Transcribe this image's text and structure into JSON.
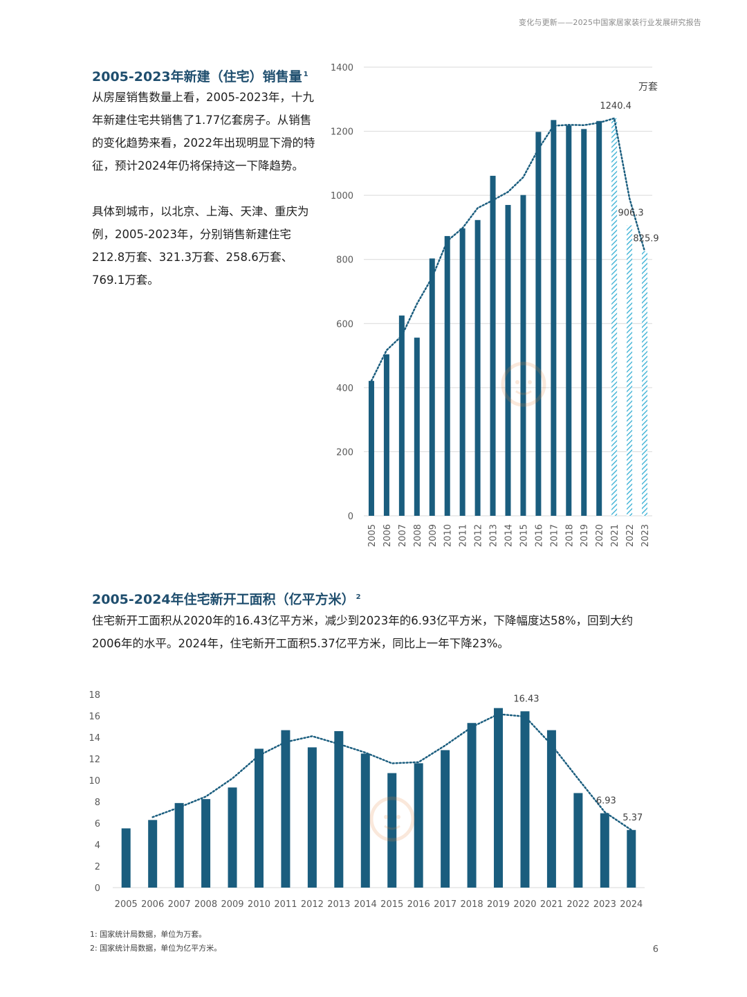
{
  "header": {
    "title": "变化与更新——2025中国家居家装行业发展研究报告"
  },
  "section1": {
    "title": "2005-2023年新建（住宅）销售量",
    "footnote_ref": "1",
    "paragraph1": "从房屋销售数量上看，2005-2023年，十九年新建住宅共销售了1.77亿套房子。从销售的变化趋势来看，2022年出现明显下滑的特征，预计2024年仍将保持这一下降趋势。",
    "paragraph2": "具体到城市，以北京、上海、天津、重庆为例，2005-2023年，分别销售新建住宅212.8万套、321.3万套、258.6万套、769.1万套。"
  },
  "section2": {
    "title": "2005-2024年住宅新开工面积（亿平方米）",
    "footnote_ref": "2",
    "paragraph": "住宅新开工面积从2020年的16.43亿平方米，减少到2023年的6.93亿平方米，下降幅度达58%，回到大约2006年的水平。2024年，住宅新开工面积5.37亿平方米，同比上一年下降23%。"
  },
  "chart_data": [
    {
      "type": "bar",
      "title": "",
      "unit": "万套",
      "categories": [
        "2005",
        "2006",
        "2007",
        "2008",
        "2009",
        "2010",
        "2011",
        "2012",
        "2013",
        "2014",
        "2015",
        "2016",
        "2017",
        "2018",
        "2019",
        "2020",
        "2021",
        "2022",
        "2023"
      ],
      "series": [
        {
          "values": [
            421,
            504,
            625,
            556,
            803,
            873,
            897,
            923,
            1061,
            970,
            1001,
            1198,
            1235,
            1218,
            1207,
            1232,
            1240.4,
            906.3,
            825.9
          ]
        }
      ],
      "hatched_categories": [
        "2021",
        "2022",
        "2023"
      ],
      "trend_line": "dotted",
      "data_labels": [
        {
          "category": "2021",
          "text": "1240.4"
        },
        {
          "category": "2022",
          "text": "906.3"
        },
        {
          "category": "2023",
          "text": "825.9"
        }
      ],
      "yticks": [
        "0",
        "200",
        "400",
        "600",
        "800",
        "1000",
        "1200",
        "1400"
      ],
      "ylim": [
        0,
        1400
      ],
      "grid": true,
      "colors": {
        "bar": "#1a5d7e",
        "hatch": "#4bb7d8",
        "trend": "#1a5d7e",
        "grid": "#d9d9d9"
      }
    },
    {
      "type": "bar",
      "title": "",
      "categories": [
        "2005",
        "2006",
        "2007",
        "2008",
        "2009",
        "2010",
        "2011",
        "2012",
        "2013",
        "2014",
        "2015",
        "2016",
        "2017",
        "2018",
        "2019",
        "2020",
        "2021",
        "2022",
        "2023",
        "2024"
      ],
      "series": [
        {
          "values": [
            5.52,
            6.3,
            7.88,
            8.25,
            9.33,
            12.94,
            14.67,
            13.07,
            14.58,
            12.49,
            10.67,
            11.59,
            12.81,
            15.34,
            16.73,
            16.43,
            14.67,
            8.81,
            6.93,
            5.37
          ]
        }
      ],
      "trend_line": "dotted",
      "data_labels": [
        {
          "category": "2020",
          "text": "16.43"
        },
        {
          "category": "2023",
          "text": "6.93"
        },
        {
          "category": "2024",
          "text": "5.37"
        }
      ],
      "yticks": [
        "0",
        "2",
        "4",
        "6",
        "8",
        "10",
        "12",
        "14",
        "16",
        "18"
      ],
      "ylim": [
        0,
        18
      ],
      "grid": false,
      "colors": {
        "bar": "#1a5d7e",
        "trend": "#1a5d7e",
        "axis": "#d9d9d9"
      }
    }
  ],
  "footnotes": [
    {
      "num": "1:",
      "text": "国家统计局数据，单位为万套。"
    },
    {
      "num": "2:",
      "text": "国家统计局数据，单位为亿平方米。"
    }
  ],
  "page_number": "6"
}
